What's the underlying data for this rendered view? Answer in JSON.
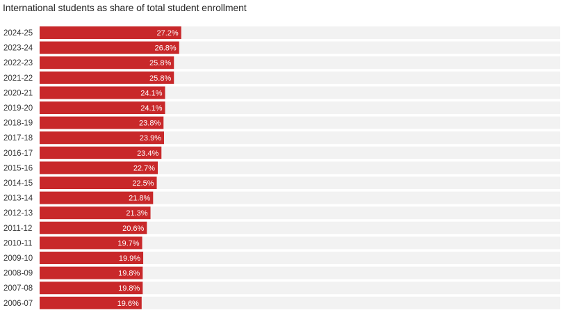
{
  "chart_data": {
    "type": "bar",
    "orientation": "horizontal",
    "title": "International students as share of total student enrollment",
    "xlabel": "",
    "ylabel": "",
    "categories": [
      "2024-25",
      "2023-24",
      "2022-23",
      "2021-22",
      "2020-21",
      "2019-20",
      "2018-19",
      "2017-18",
      "2016-17",
      "2015-16",
      "2014-15",
      "2013-14",
      "2012-13",
      "2011-12",
      "2010-11",
      "2009-10",
      "2008-09",
      "2007-08",
      "2006-07"
    ],
    "values": [
      27.2,
      26.8,
      25.8,
      25.8,
      24.1,
      24.1,
      23.8,
      23.9,
      23.4,
      22.7,
      22.5,
      21.8,
      21.3,
      20.6,
      19.7,
      19.9,
      19.8,
      19.8,
      19.6
    ],
    "value_labels": [
      "27.2%",
      "26.8%",
      "25.8%",
      "25.8%",
      "24.1%",
      "24.1%",
      "23.8%",
      "23.9%",
      "23.4%",
      "22.7%",
      "22.5%",
      "21.8%",
      "21.3%",
      "20.6%",
      "19.7%",
      "19.9%",
      "19.8%",
      "19.8%",
      "19.6%"
    ],
    "xlim": [
      0,
      100
    ],
    "grid": false,
    "legend": "none",
    "colors": {
      "bar": "#c8282a",
      "track": "#f2f2f2",
      "value_text": "#ffffff",
      "label_text": "#333333"
    }
  }
}
